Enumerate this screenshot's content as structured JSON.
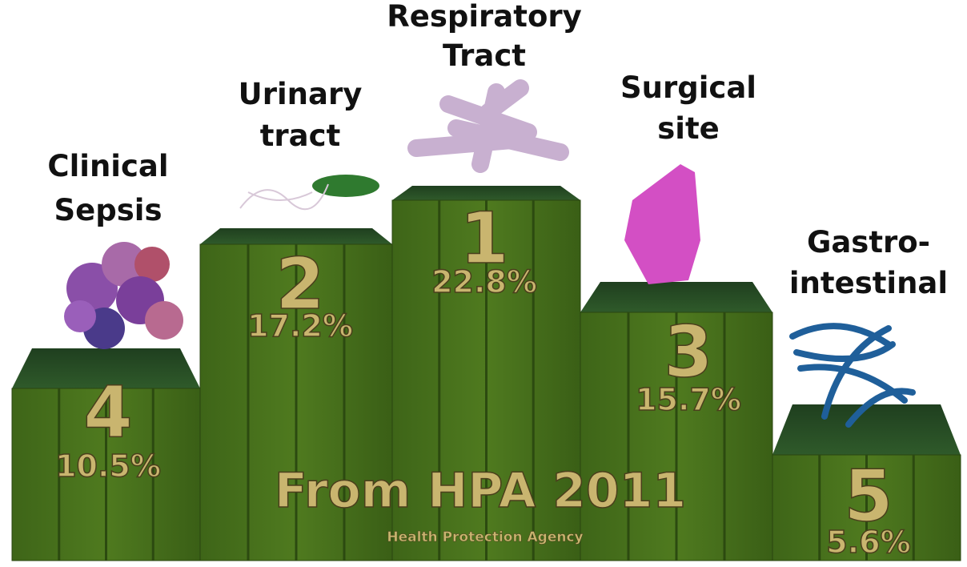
{
  "podium": [
    {
      "label_lines": [
        "Clinical",
        "Sepsis"
      ],
      "rank": 4,
      "percent": "10.5%"
    },
    {
      "label_lines": [
        "Urinary",
        "tract"
      ],
      "rank": 2,
      "percent": "17.2%"
    },
    {
      "label_lines": [
        "Respiratory",
        "Tract"
      ],
      "rank": 1,
      "percent": "22.8%"
    },
    {
      "label_lines": [
        "Surgical",
        "site"
      ],
      "rank": 3,
      "percent": "15.7%"
    },
    {
      "label_lines": [
        "Gastro-",
        "intestinal"
      ],
      "rank": 5,
      "percent": "5.6%"
    }
  ],
  "source": {
    "title": "From HPA 2011",
    "subtitle": "Health Protection Agency"
  }
}
